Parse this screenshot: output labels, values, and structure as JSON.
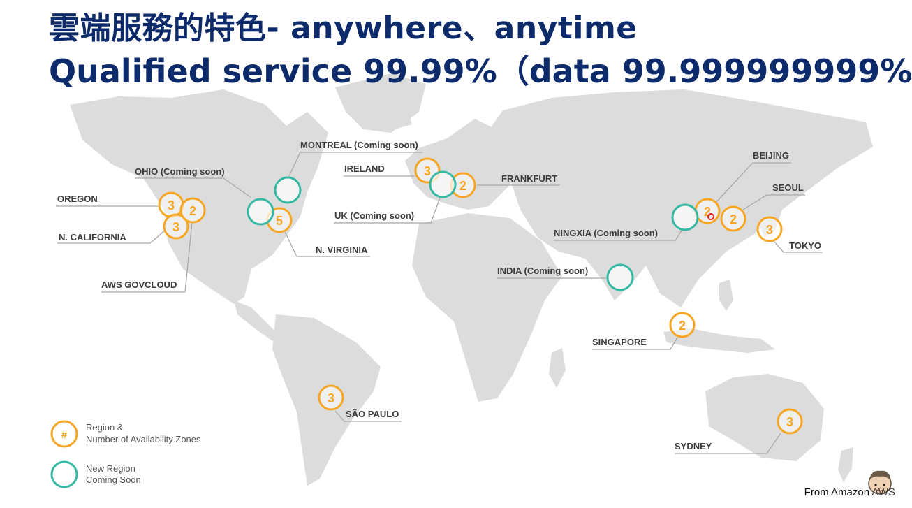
{
  "title": {
    "line1": "雲端服務的特色- anywhere、anytime",
    "line2": "Qualified service 99.99%（data 99.999999999%）"
  },
  "colors": {
    "title": "#0d2a6b",
    "region": "#f6a623",
    "new_region": "#35b8a4",
    "land": "#dcdcdc"
  },
  "regions": {
    "oregon": {
      "label": "OREGON",
      "zones": "3"
    },
    "n_california": {
      "label": "N. CALIFORNIA",
      "zones": "3"
    },
    "aws_govcloud": {
      "label": "AWS GOVCLOUD",
      "zones": "2"
    },
    "ohio": {
      "label": "OHIO (Coming soon)"
    },
    "montreal": {
      "label": "MONTREAL (Coming soon)"
    },
    "n_virginia": {
      "label": "N. VIRGINIA",
      "zones": "5"
    },
    "ireland": {
      "label": "IRELAND",
      "zones": "3"
    },
    "frankfurt": {
      "label": "FRANKFURT",
      "zones": "2"
    },
    "uk": {
      "label": "UK (Coming soon)"
    },
    "beijing": {
      "label": "BEIJING",
      "zones": "2"
    },
    "seoul": {
      "label": "SEOUL",
      "zones": "2"
    },
    "tokyo": {
      "label": "TOKYO",
      "zones": "3"
    },
    "ningxia": {
      "label": "NINGXIA (Coming soon)"
    },
    "india": {
      "label": "INDIA (Coming soon)"
    },
    "singapore": {
      "label": "SINGAPORE",
      "zones": "2"
    },
    "sao_paulo": {
      "label": "SÃO PAULO",
      "zones": "3"
    },
    "sydney": {
      "label": "SYDNEY",
      "zones": "3"
    }
  },
  "legend": {
    "region_symbol": "#",
    "region_line1": "Region &",
    "region_line2": "Number of Availability Zones",
    "new_line1": "New Region",
    "new_line2": "Coming Soon"
  },
  "credit": {
    "prefix": "From  Amazon ",
    "brand": "AWS"
  }
}
